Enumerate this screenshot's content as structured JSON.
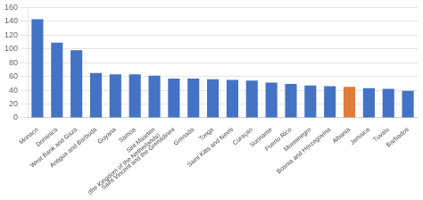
{
  "chart_data": {
    "type": "bar",
    "categories": [
      "Monaco",
      "Dominica",
      "West Bank and Gaza",
      "Antigua and Barbuda",
      "Guyana",
      "Samoa",
      "Sint Maarten\n(the Kingdom of the Netherlands)",
      "Saint Vincent and the Grenadines",
      "Grenada",
      "Tonga",
      "Saint Kitts and Nevis",
      "Curaçao",
      "Suriname",
      "Puerto Rico",
      "Montenegro",
      "Bosnia and Herzegovina",
      "Albania",
      "Jamaica",
      "Tuvalu",
      "Barbados"
    ],
    "values": [
      143,
      109,
      98,
      65,
      63,
      63,
      61,
      57,
      57,
      56,
      55,
      54,
      51,
      49,
      47,
      46,
      45,
      43,
      42,
      39
    ],
    "colors": [
      "#4472C4",
      "#4472C4",
      "#4472C4",
      "#4472C4",
      "#4472C4",
      "#4472C4",
      "#4472C4",
      "#4472C4",
      "#4472C4",
      "#4472C4",
      "#4472C4",
      "#4472C4",
      "#4472C4",
      "#4472C4",
      "#4472C4",
      "#4472C4",
      "#E07B39",
      "#4472C4",
      "#4472C4",
      "#4472C4"
    ],
    "ylim": [
      0,
      160
    ],
    "yticks": [
      0,
      20,
      40,
      60,
      80,
      100,
      120,
      140,
      160
    ],
    "grid": true
  }
}
